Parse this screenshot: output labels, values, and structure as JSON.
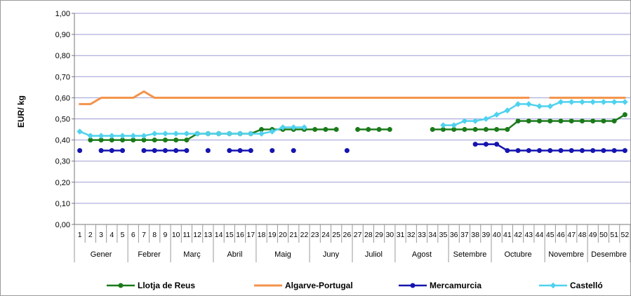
{
  "chart_data": {
    "type": "line",
    "title": "",
    "ylabel": "EUR/ kg",
    "xlabel": "",
    "ylim": [
      0,
      1
    ],
    "yticks": [
      "0,00",
      "0,10",
      "0,20",
      "0,30",
      "0,40",
      "0,50",
      "0,60",
      "0,70",
      "0,80",
      "0,90",
      "1,00"
    ],
    "ytick_values": [
      0,
      0.1,
      0.2,
      0.3,
      0.4,
      0.5,
      0.6,
      0.7,
      0.8,
      0.9,
      1.0
    ],
    "weeks": [
      "1",
      "2",
      "3",
      "4",
      "5",
      "6",
      "7",
      "8",
      "9",
      "10",
      "11",
      "12",
      "13",
      "14",
      "15",
      "16",
      "17",
      "18",
      "19",
      "20",
      "21",
      "22",
      "23",
      "24",
      "25",
      "26",
      "27",
      "28",
      "29",
      "30",
      "31",
      "32",
      "33",
      "34",
      "35",
      "36",
      "37",
      "38",
      "39",
      "40",
      "41",
      "42",
      "43",
      "44",
      "45",
      "46",
      "47",
      "48",
      "49",
      "50",
      "51",
      "52"
    ],
    "months": [
      {
        "label": "Gener",
        "start_week": 1,
        "end_week": 5
      },
      {
        "label": "Febrer",
        "start_week": 6,
        "end_week": 9
      },
      {
        "label": "Març",
        "start_week": 10,
        "end_week": 13
      },
      {
        "label": "Abril",
        "start_week": 14,
        "end_week": 17
      },
      {
        "label": "Maig",
        "start_week": 18,
        "end_week": 22
      },
      {
        "label": "Juny",
        "start_week": 23,
        "end_week": 26
      },
      {
        "label": "Juliol",
        "start_week": 27,
        "end_week": 30
      },
      {
        "label": "Agost",
        "start_week": 31,
        "end_week": 35
      },
      {
        "label": "Setembre",
        "start_week": 36,
        "end_week": 39
      },
      {
        "label": "Octubre",
        "start_week": 40,
        "end_week": 44
      },
      {
        "label": "Novembre",
        "start_week": 45,
        "end_week": 48
      },
      {
        "label": "Desembre",
        "start_week": 49,
        "end_week": 52
      }
    ],
    "grid": true,
    "legend_position": "bottom",
    "series": [
      {
        "name": "Llotja de Reus",
        "color": "#1a7a1a",
        "marker": "circle",
        "values": [
          null,
          0.4,
          0.4,
          0.4,
          0.4,
          0.4,
          0.4,
          0.4,
          0.4,
          0.4,
          0.4,
          0.43,
          0.43,
          0.43,
          0.43,
          0.43,
          0.43,
          0.45,
          0.45,
          0.45,
          0.45,
          0.45,
          0.45,
          0.45,
          0.45,
          null,
          0.45,
          0.45,
          0.45,
          0.45,
          null,
          null,
          null,
          0.45,
          0.45,
          0.45,
          0.45,
          0.45,
          0.45,
          0.45,
          0.45,
          0.49,
          0.49,
          0.49,
          0.49,
          0.49,
          0.49,
          0.49,
          0.49,
          0.49,
          0.49,
          0.52
        ]
      },
      {
        "name": "Algarve-Portugal",
        "color": "#f4934a",
        "marker": "none",
        "values": [
          0.57,
          0.57,
          0.6,
          0.6,
          0.6,
          0.6,
          0.63,
          0.6,
          0.6,
          0.6,
          0.6,
          0.6,
          0.6,
          0.6,
          0.6,
          0.6,
          0.6,
          0.6,
          0.6,
          0.6,
          0.6,
          0.6,
          0.6,
          0.6,
          0.6,
          0.6,
          0.6,
          0.6,
          0.6,
          0.6,
          0.6,
          0.6,
          0.6,
          0.6,
          0.6,
          0.6,
          0.6,
          0.6,
          0.6,
          0.6,
          0.6,
          0.6,
          0.6,
          null,
          0.6,
          0.6,
          0.6,
          0.6,
          0.6,
          0.6,
          0.6,
          0.6
        ]
      },
      {
        "name": "Mercamurcia",
        "color": "#1515b0",
        "marker": "circle",
        "values": [
          0.35,
          null,
          0.35,
          0.35,
          0.35,
          null,
          0.35,
          0.35,
          0.35,
          0.35,
          0.35,
          null,
          0.35,
          null,
          0.35,
          0.35,
          0.35,
          null,
          0.35,
          null,
          0.35,
          null,
          null,
          null,
          null,
          0.35,
          null,
          null,
          null,
          null,
          null,
          null,
          null,
          null,
          null,
          null,
          null,
          0.38,
          0.38,
          0.38,
          0.35,
          0.35,
          0.35,
          0.35,
          0.35,
          0.35,
          0.35,
          0.35,
          0.35,
          0.35,
          0.35,
          0.35
        ]
      },
      {
        "name": "Castelló",
        "color": "#4fd2ef",
        "marker": "diamond",
        "values": [
          0.44,
          0.42,
          0.42,
          0.42,
          0.42,
          0.42,
          0.42,
          0.43,
          0.43,
          0.43,
          0.43,
          0.43,
          0.43,
          0.43,
          0.43,
          0.43,
          0.43,
          0.43,
          0.44,
          0.46,
          0.46,
          0.46,
          null,
          null,
          null,
          null,
          null,
          null,
          null,
          null,
          null,
          null,
          null,
          null,
          0.47,
          0.47,
          0.49,
          0.49,
          0.5,
          0.52,
          0.54,
          0.57,
          0.57,
          0.56,
          0.56,
          0.58,
          0.58,
          0.58,
          0.58,
          0.58,
          0.58,
          0.58
        ]
      }
    ]
  }
}
